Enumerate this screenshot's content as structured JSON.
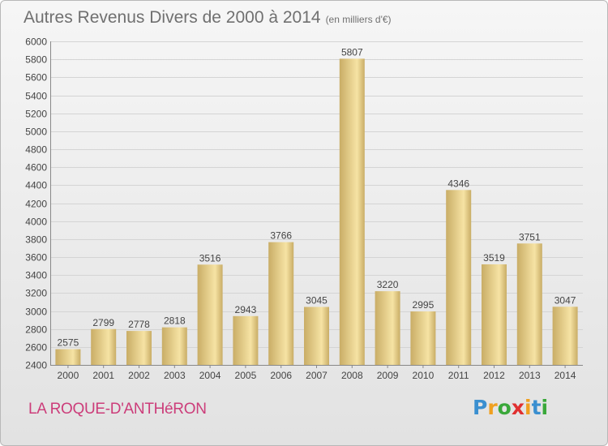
{
  "title": "Autres Revenus Divers de 2000 à 2014",
  "unit_note": "(en milliers d'€)",
  "location": "LA ROQUE-D'ANTHéRON",
  "logo": {
    "letters": [
      "P",
      "r",
      "o",
      "x",
      "i",
      "t",
      "i"
    ],
    "colors": [
      "#3a8fd0",
      "#f0a020",
      "#3aa83a",
      "#e03030",
      "#f0a020",
      "#3a8fd0",
      "#3aa83a"
    ]
  },
  "colors": {
    "bar_light": "#f6e3a4",
    "bar_dark": "#c9ad66",
    "grid": "#d4d4d4",
    "axis_text": "#444444"
  },
  "chart_data": {
    "type": "bar",
    "categories": [
      "2000",
      "2001",
      "2002",
      "2003",
      "2004",
      "2005",
      "2006",
      "2007",
      "2008",
      "2009",
      "2010",
      "2011",
      "2012",
      "2013",
      "2014"
    ],
    "values": [
      2575,
      2799,
      2778,
      2818,
      3516,
      2943,
      3766,
      3045,
      5807,
      3220,
      2995,
      4346,
      3519,
      3751,
      3047
    ],
    "ylim": [
      2400,
      6000
    ],
    "ytick_step": 200,
    "grid": true
  }
}
